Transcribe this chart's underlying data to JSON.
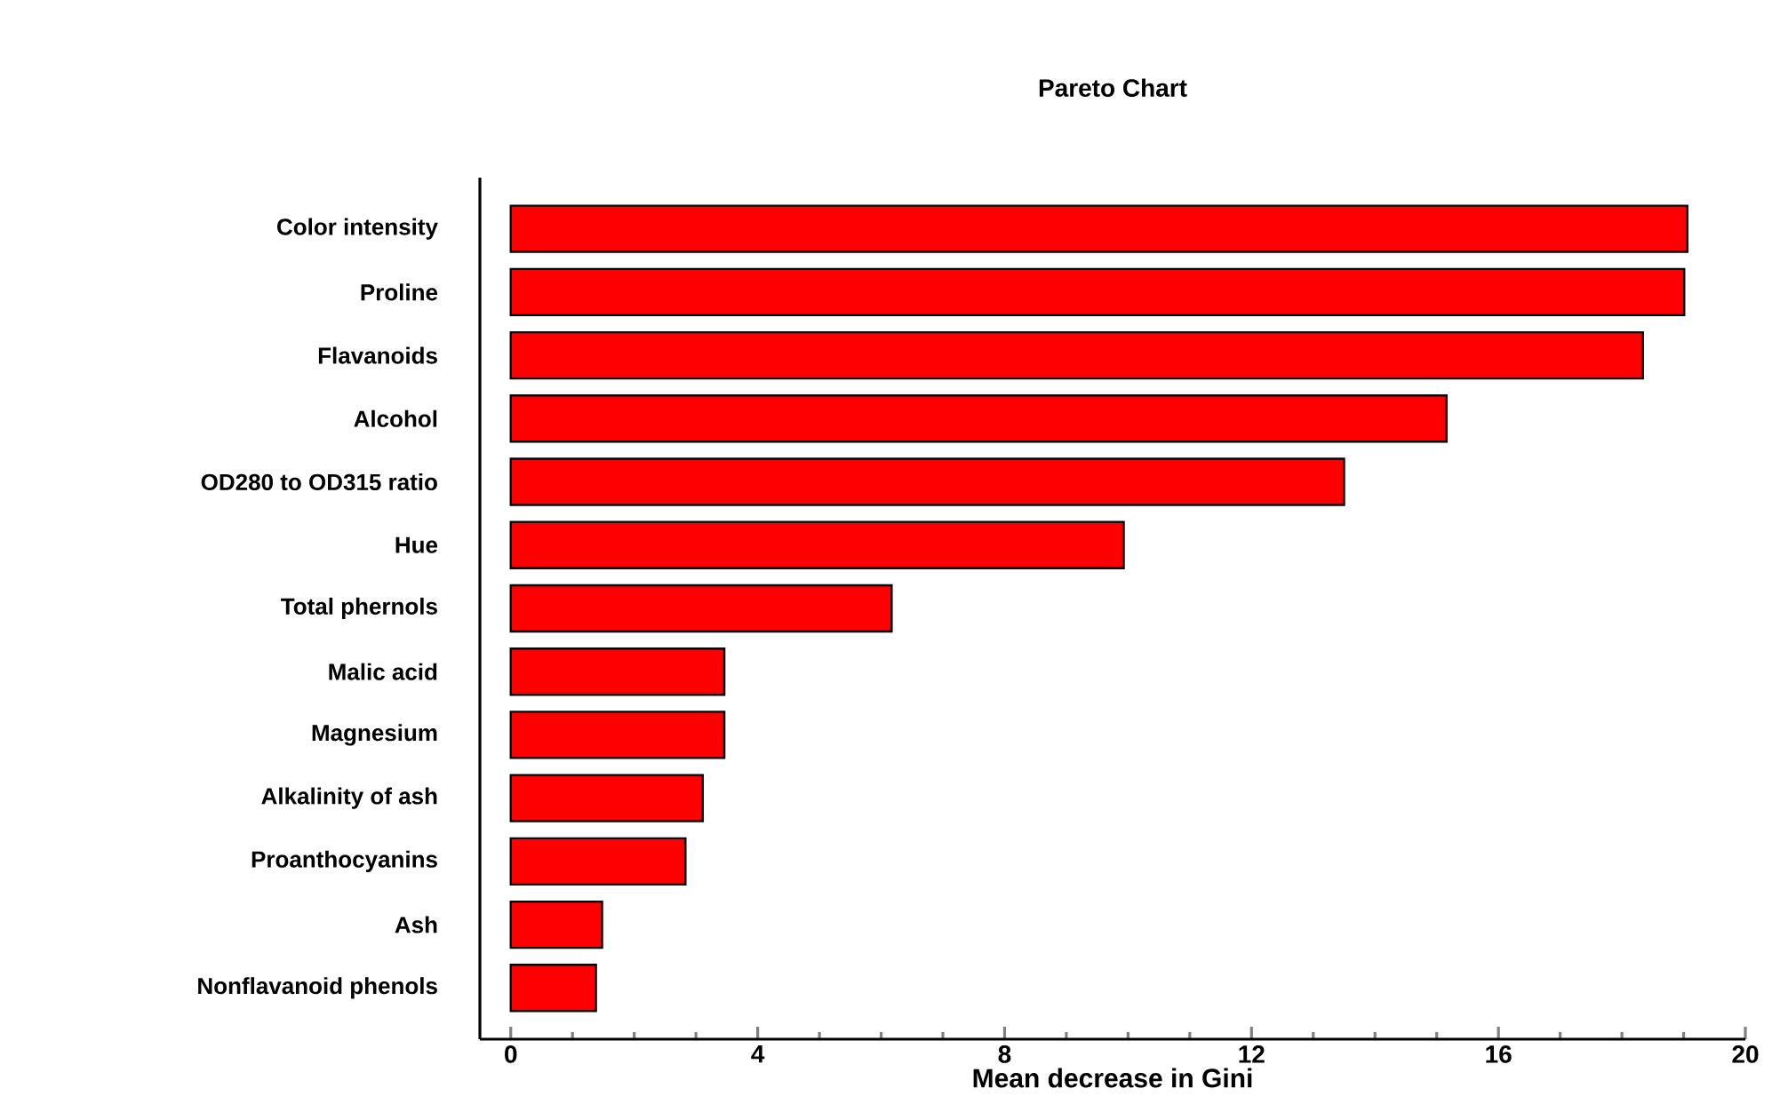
{
  "chart_data": {
    "type": "bar",
    "orientation": "horizontal",
    "title": "Pareto Chart",
    "xlabel": "Mean decrease in Gini",
    "categories": [
      "Color intensity",
      "Proline",
      "Flavanoids",
      "Alcohol",
      "OD280 to OD315 ratio",
      "Hue",
      "Total phernols",
      "Malic acid",
      "Magnesium",
      "Alkalinity of ash",
      "Proanthocyanins",
      "Ash",
      "Nonflavanoid phenols"
    ],
    "values": [
      19.06,
      19.01,
      18.34,
      15.16,
      13.5,
      9.93,
      6.17,
      3.46,
      3.46,
      3.11,
      2.83,
      1.48,
      1.38
    ],
    "color": "#ff0000",
    "xlim": [
      -0.5,
      20
    ],
    "xticks": [
      0,
      4,
      8,
      12,
      16,
      20
    ]
  }
}
